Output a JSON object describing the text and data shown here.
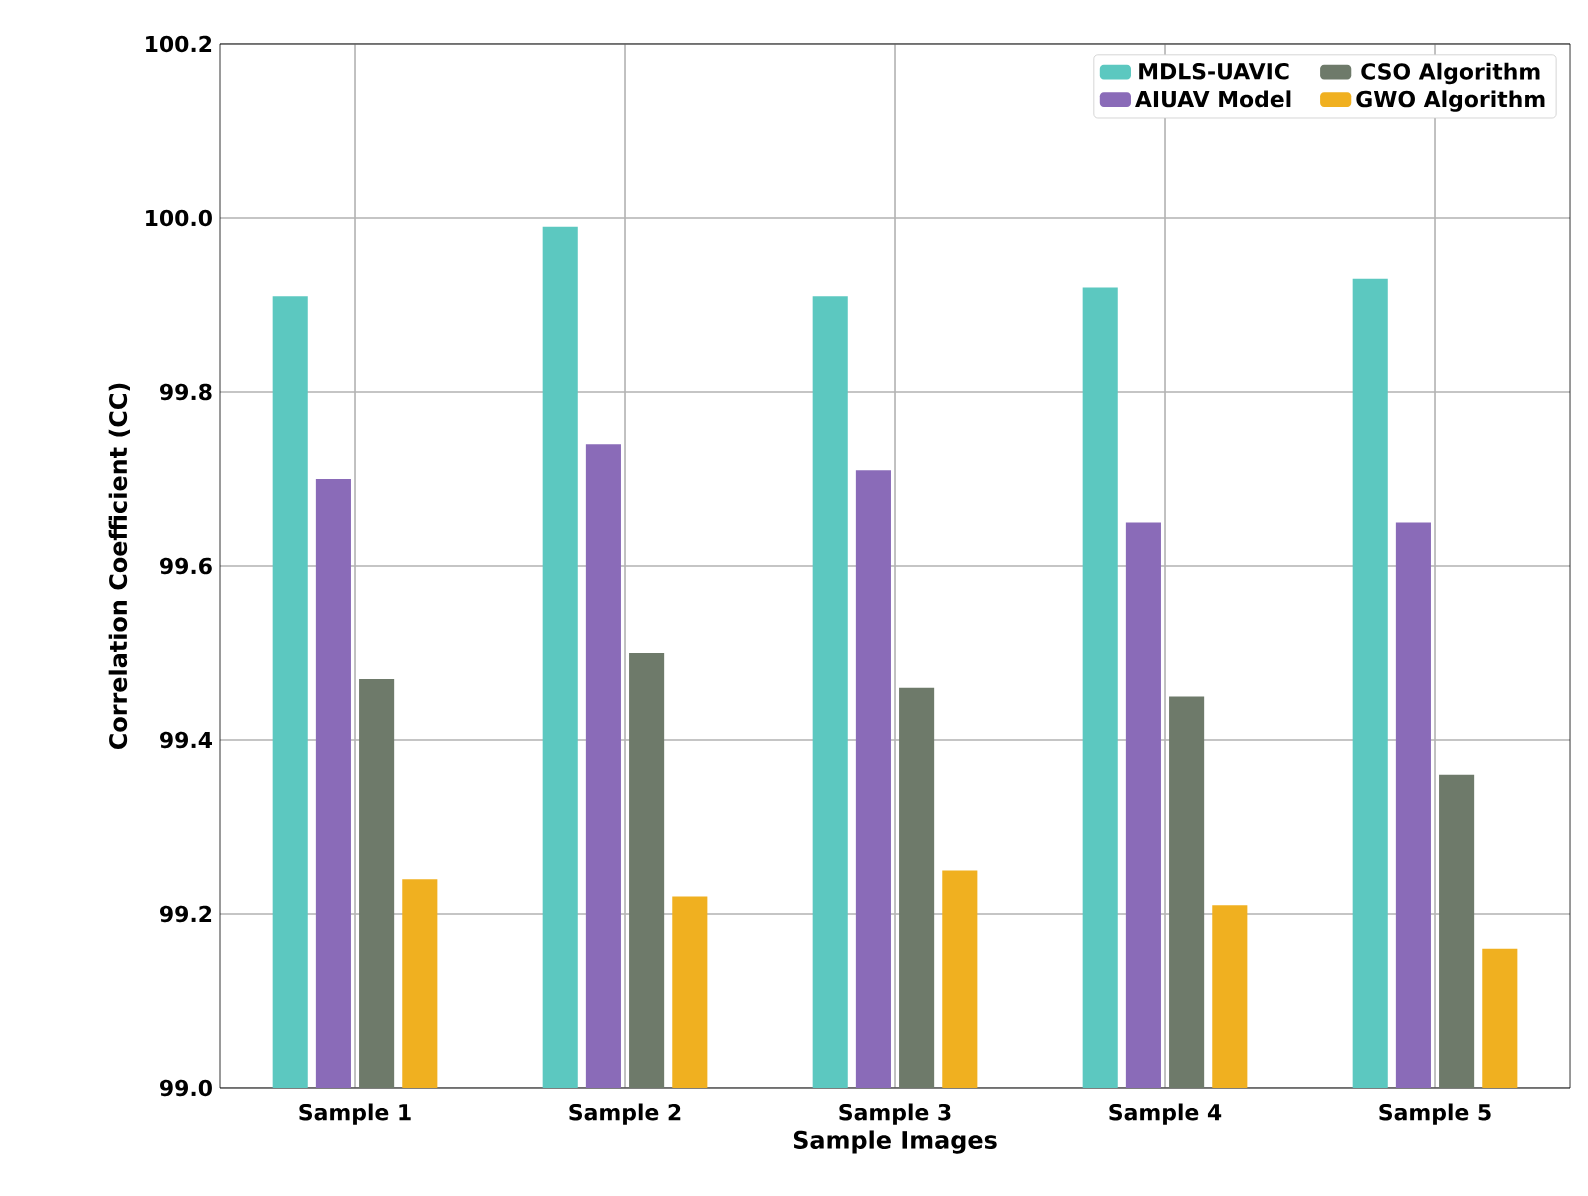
{
  "chart_data": {
    "type": "bar",
    "xlabel": "Sample Images",
    "ylabel": "Correlation Coefficient (CC)",
    "categories": [
      "Sample 1",
      "Sample 2",
      "Sample 3",
      "Sample 4",
      "Sample 5"
    ],
    "series": [
      {
        "name": "MDLS-UAVIC",
        "color": "#5cc8c0",
        "values": [
          99.91,
          99.99,
          99.91,
          99.92,
          99.93
        ]
      },
      {
        "name": "AIUAV Model",
        "color": "#8a6bb8",
        "values": [
          99.7,
          99.74,
          99.71,
          99.65,
          99.65
        ]
      },
      {
        "name": "CSO Algorithm",
        "color": "#6e7a6a",
        "values": [
          99.47,
          99.5,
          99.46,
          99.45,
          99.36
        ]
      },
      {
        "name": "GWO Algorithm",
        "color": "#f0b020",
        "values": [
          99.24,
          99.22,
          99.25,
          99.21,
          99.16
        ]
      }
    ],
    "ylim": [
      99.0,
      100.2
    ],
    "yticks": [
      {
        "value": 99.0,
        "label": "99.0"
      },
      99.2,
      99.4,
      99.6,
      99.8,
      {
        "value": 100.0,
        "label": "100.0"
      },
      100.2
    ],
    "grid": true,
    "legend": "top right"
  }
}
